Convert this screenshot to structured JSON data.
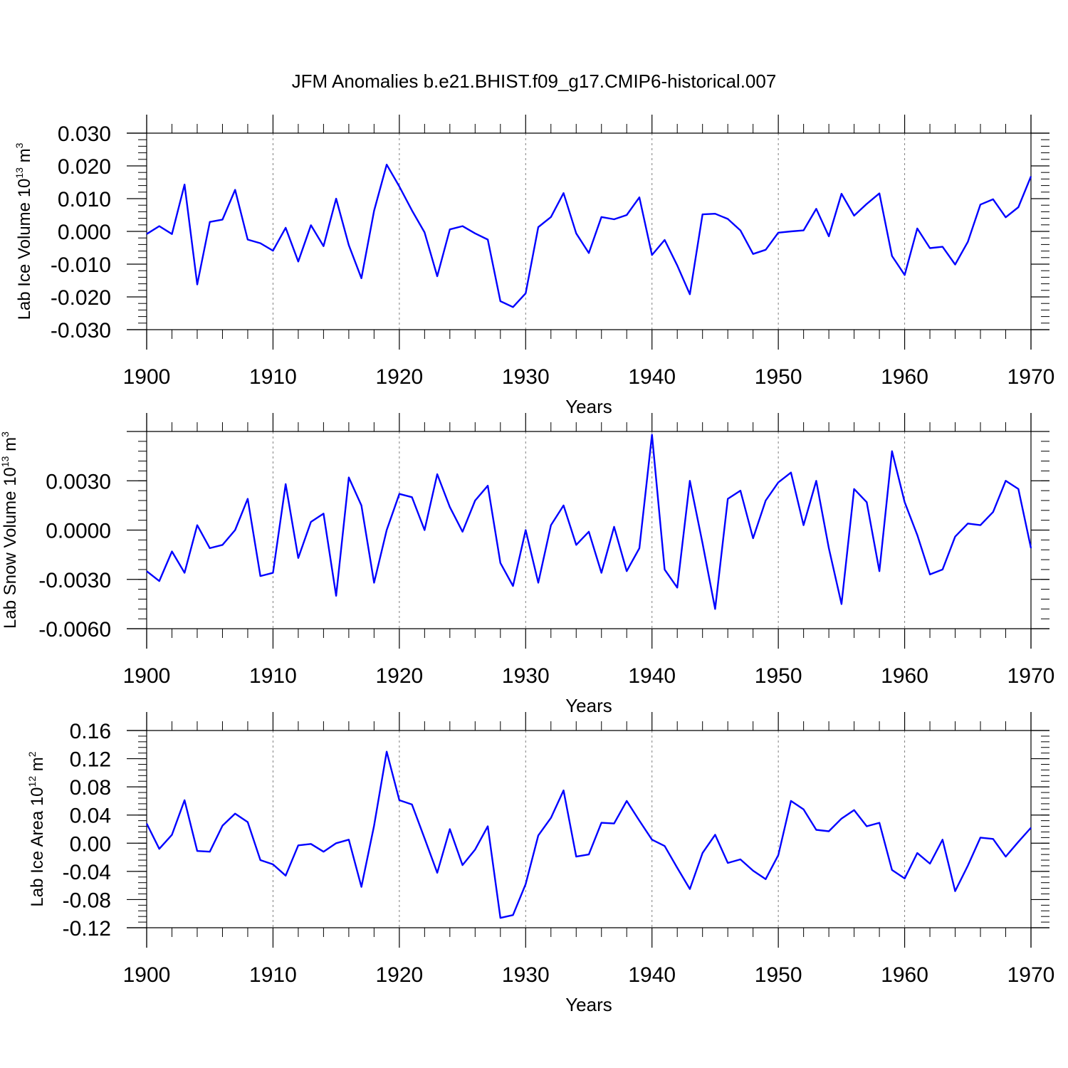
{
  "title": "JFM Anomalies b.e21.BHIST.f09_g17.CMIP6-historical.007",
  "chart_data": [
    {
      "type": "line",
      "name": "lab-ice-volume",
      "ylabel_main": "Lab Ice Volume 10",
      "ylabel_exp": "13",
      "ylabel_unit": " m",
      "ylabel_unit_exp": "3",
      "xlabel": "Years",
      "xlim": [
        1900,
        1970
      ],
      "ylim": [
        -0.03,
        0.03
      ],
      "x_ticks": [
        "1900",
        "1910",
        "1920",
        "1930",
        "1940",
        "1950",
        "1960",
        "1970"
      ],
      "y_ticks": [
        {
          "value": 0.03,
          "label": "0.030"
        },
        {
          "value": 0.02,
          "label": "0.020"
        },
        {
          "value": 0.01,
          "label": "0.010"
        },
        {
          "value": 0.0,
          "label": "0.000"
        },
        {
          "value": -0.01,
          "label": "-0.010"
        },
        {
          "value": -0.02,
          "label": "-0.020"
        },
        {
          "value": -0.03,
          "label": "-0.030"
        }
      ],
      "line_color": "#0000ff",
      "x_start": 1900,
      "values": [
        -0.0008,
        0.0016,
        -0.0008,
        0.0143,
        -0.0162,
        0.0029,
        0.0036,
        0.0127,
        -0.0025,
        -0.0036,
        -0.0059,
        0.0011,
        -0.0092,
        0.0019,
        -0.0045,
        0.01,
        -0.0042,
        -0.0143,
        0.0063,
        0.0204,
        0.0137,
        0.0064,
        -0.0003,
        -0.0137,
        0.0006,
        0.0016,
        -0.0006,
        -0.0025,
        -0.0213,
        -0.0231,
        -0.0189,
        0.0013,
        0.0044,
        0.0117,
        -0.0006,
        -0.0066,
        0.0044,
        0.0037,
        0.005,
        0.0104,
        -0.0072,
        -0.0026,
        -0.0104,
        -0.0192,
        0.0052,
        0.0054,
        0.0038,
        0.0003,
        -0.0069,
        -0.0056,
        -0.0004,
        0.0,
        0.0003,
        0.0069,
        -0.0015,
        0.0115,
        0.0048,
        0.0084,
        0.0116,
        -0.0075,
        -0.0133,
        0.0009,
        -0.0051,
        -0.0047,
        -0.0101,
        -0.0032,
        0.0082,
        0.0098,
        0.0043,
        0.0074,
        0.0168
      ]
    },
    {
      "type": "line",
      "name": "lab-snow-volume",
      "ylabel_main": "Lab Snow Volume 10",
      "ylabel_exp": "13",
      "ylabel_unit": " m",
      "ylabel_unit_exp": "3",
      "xlabel": "Years",
      "xlim": [
        1900,
        1970
      ],
      "ylim": [
        -0.006,
        0.006
      ],
      "x_ticks": [
        "1900",
        "1910",
        "1920",
        "1930",
        "1940",
        "1950",
        "1960",
        "1970"
      ],
      "y_ticks": [
        {
          "value": 0.003,
          "label": "0.0030"
        },
        {
          "value": 0.0,
          "label": "0.0000"
        },
        {
          "value": -0.003,
          "label": "-0.0030"
        },
        {
          "value": -0.006,
          "label": "-0.0060"
        }
      ],
      "line_color": "#0000ff",
      "x_start": 1900,
      "values": [
        -0.0025,
        -0.0031,
        -0.0013,
        -0.0026,
        0.0003,
        -0.0011,
        -0.0009,
        0.0,
        0.0019,
        -0.0028,
        -0.0026,
        0.0028,
        -0.0017,
        0.0005,
        0.001,
        -0.004,
        0.0032,
        0.0015,
        -0.0032,
        0.0,
        0.0022,
        0.002,
        0.0,
        0.0034,
        0.0014,
        -0.0001,
        0.0018,
        0.0027,
        -0.002,
        -0.0034,
        0.0,
        -0.0032,
        0.0003,
        0.0015,
        -0.0009,
        -0.0001,
        -0.0026,
        0.0002,
        -0.0025,
        -0.0011,
        0.0058,
        -0.0024,
        -0.0035,
        0.003,
        -0.0008,
        -0.0048,
        0.0019,
        0.0024,
        -0.0005,
        0.0018,
        0.0029,
        0.0035,
        0.0003,
        0.003,
        -0.0011,
        -0.0045,
        0.0025,
        0.0017,
        -0.0025,
        0.0048,
        0.0017,
        -0.0003,
        -0.0027,
        -0.0024,
        -0.0004,
        0.0004,
        0.0003,
        0.0011,
        0.003,
        0.0025,
        -0.0011
      ]
    },
    {
      "type": "line",
      "name": "lab-ice-area",
      "ylabel_main": "Lab Ice Area 10",
      "ylabel_exp": "12",
      "ylabel_unit": " m",
      "ylabel_unit_exp": "2",
      "xlabel": "Years",
      "xlim": [
        1900,
        1970
      ],
      "ylim": [
        -0.12,
        0.16
      ],
      "x_ticks": [
        "1900",
        "1910",
        "1920",
        "1930",
        "1940",
        "1950",
        "1960",
        "1970"
      ],
      "y_ticks": [
        {
          "value": 0.16,
          "label": "0.16"
        },
        {
          "value": 0.12,
          "label": "0.12"
        },
        {
          "value": 0.08,
          "label": "0.08"
        },
        {
          "value": 0.04,
          "label": "0.04"
        },
        {
          "value": 0.0,
          "label": "0.00"
        },
        {
          "value": -0.04,
          "label": "-0.04"
        },
        {
          "value": -0.08,
          "label": "-0.08"
        },
        {
          "value": -0.12,
          "label": "-0.12"
        }
      ],
      "line_color": "#0000ff",
      "x_start": 1900,
      "values": [
        0.028,
        -0.008,
        0.012,
        0.061,
        -0.011,
        -0.012,
        0.025,
        0.042,
        0.03,
        -0.024,
        -0.03,
        -0.046,
        -0.003,
        -0.001,
        -0.012,
        0.0,
        0.005,
        -0.062,
        0.025,
        0.13,
        0.061,
        0.055,
        0.007,
        -0.042,
        0.02,
        -0.031,
        -0.009,
        0.024,
        -0.106,
        -0.102,
        -0.058,
        0.011,
        0.036,
        0.075,
        -0.019,
        -0.016,
        0.029,
        0.028,
        0.06,
        0.032,
        0.005,
        -0.004,
        -0.035,
        -0.065,
        -0.014,
        0.012,
        -0.028,
        -0.023,
        -0.039,
        -0.051,
        -0.017,
        0.06,
        0.048,
        0.019,
        0.017,
        0.035,
        0.047,
        0.024,
        0.029,
        -0.038,
        -0.05,
        -0.014,
        -0.029,
        0.005,
        -0.068,
        -0.032,
        0.008,
        0.006,
        -0.019,
        0.002,
        0.022
      ]
    }
  ]
}
